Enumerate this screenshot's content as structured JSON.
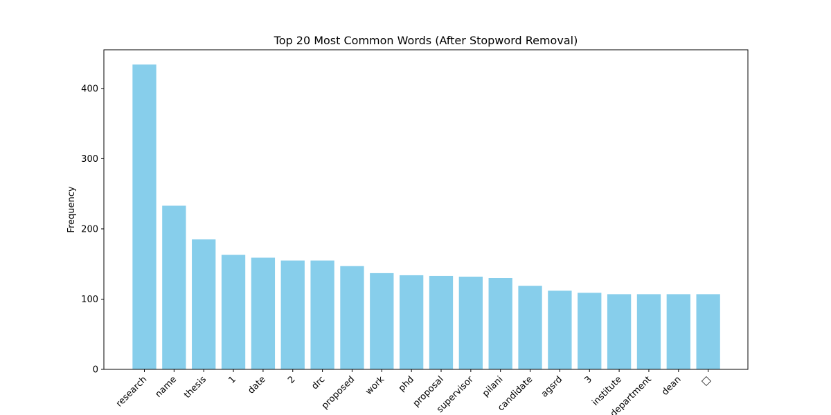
{
  "chart_data": {
    "type": "bar",
    "title": "Top 20 Most Common Words (After Stopword Removal)",
    "xlabel": "",
    "ylabel": "Frequency",
    "ylim": [
      0,
      455
    ],
    "yticks": [
      0,
      100,
      200,
      300,
      400
    ],
    "grid": false,
    "bar_color": "#87ceeb",
    "categories": [
      "research",
      "name",
      "thesis",
      "1",
      "date",
      "2",
      "drc",
      "proposed",
      "work",
      "phd",
      "proposal",
      "supervisor",
      "pilani",
      "candidate",
      "agsrd",
      "3",
      "institute",
      "department",
      "dean",
      "□"
    ],
    "values": [
      434,
      233,
      185,
      163,
      159,
      155,
      155,
      147,
      137,
      134,
      133,
      132,
      130,
      119,
      112,
      109,
      107,
      107,
      107,
      107
    ]
  }
}
